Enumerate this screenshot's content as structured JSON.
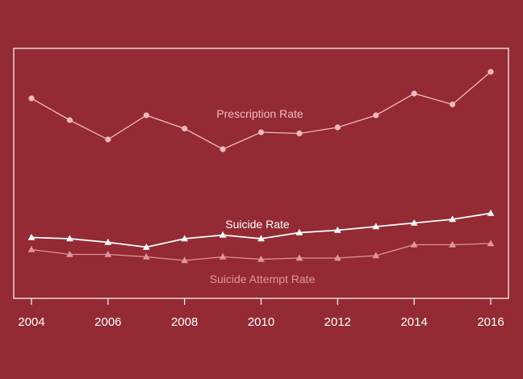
{
  "chart_data": {
    "type": "line",
    "title": "",
    "xlabel": "",
    "ylabel": "",
    "grid": false,
    "x": [
      2004,
      2005,
      2006,
      2007,
      2008,
      2009,
      2010,
      2011,
      2012,
      2013,
      2014,
      2015,
      2016
    ],
    "x_ticks": [
      2004,
      2006,
      2008,
      2010,
      2012,
      2014,
      2016
    ],
    "xlim": [
      2004,
      2016
    ],
    "ylim": [
      0,
      100
    ],
    "series": [
      {
        "name": "Prescription Rate",
        "marker": "circle",
        "color": "#f4b8bf",
        "values": [
          80,
          71,
          63,
          73,
          67.5,
          59,
          66,
          65.5,
          68,
          73,
          82,
          77.5,
          91
        ]
      },
      {
        "name": "Suicide Rate",
        "marker": "triangle",
        "color": "#ffffff",
        "values": [
          22.5,
          22,
          20.5,
          18.5,
          22,
          23.5,
          22,
          24.5,
          25.5,
          27,
          28.5,
          30,
          32.5
        ]
      },
      {
        "name": "Suicide Attempt Rate",
        "marker": "triangle",
        "color": "#e0959c",
        "values": [
          17.5,
          15.5,
          15.5,
          14.5,
          13,
          14.5,
          13.5,
          14,
          14,
          15,
          19.5,
          19.5,
          20
        ]
      }
    ]
  }
}
